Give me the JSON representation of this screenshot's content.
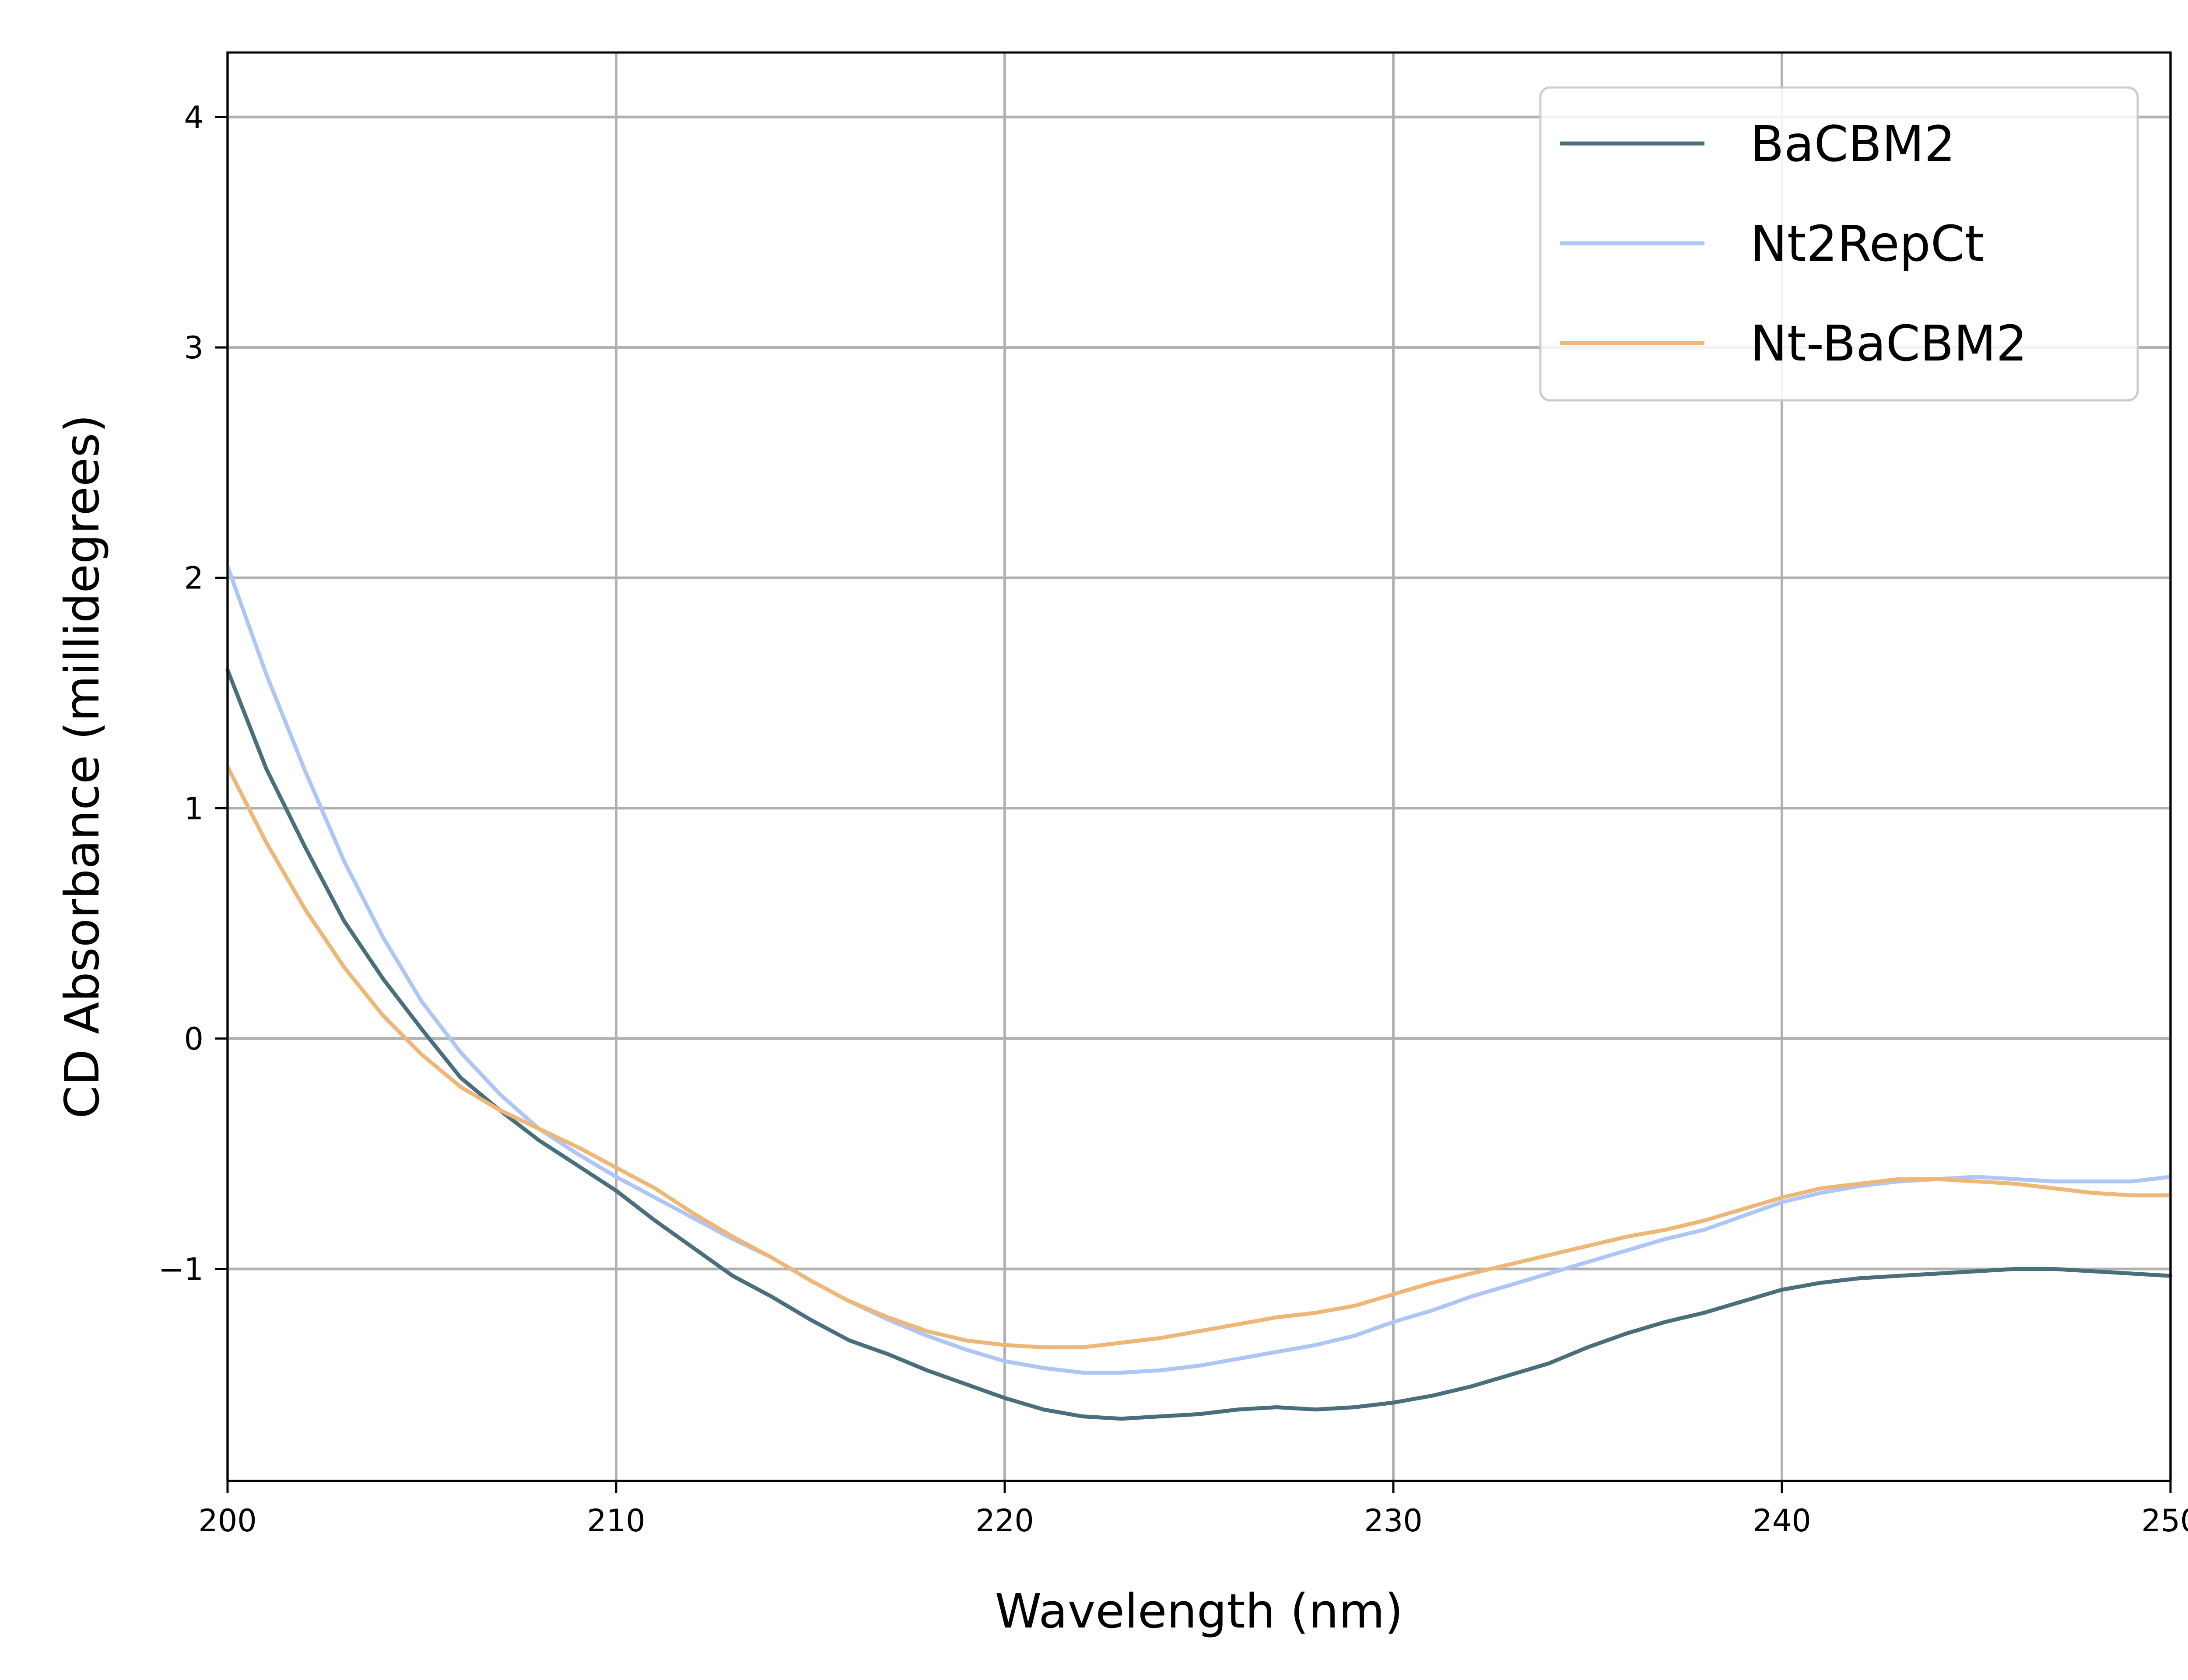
{
  "chart_data": {
    "type": "line",
    "xlabel": "Wavelength (nm)",
    "ylabel": "CD Absorbance (millidegrees)",
    "xlim": [
      200,
      250
    ],
    "ylim": [
      -1.92,
      4.28
    ],
    "xticks": [
      200,
      210,
      220,
      230,
      240,
      250
    ],
    "xtick_labels": [
      "200",
      "210",
      "220",
      "230",
      "240",
      "250"
    ],
    "yticks": [
      -1,
      0,
      1,
      2,
      3,
      4
    ],
    "ytick_labels": [
      "−1",
      "0",
      "1",
      "2",
      "3",
      "4"
    ],
    "grid": true,
    "legend_position": "top-right",
    "x": [
      200,
      201,
      202,
      203,
      204,
      205,
      206,
      207,
      208,
      209,
      210,
      211,
      212,
      213,
      214,
      215,
      216,
      217,
      218,
      219,
      220,
      221,
      222,
      223,
      224,
      225,
      226,
      227,
      228,
      229,
      230,
      231,
      232,
      233,
      234,
      235,
      236,
      237,
      238,
      239,
      240,
      241,
      242,
      243,
      244,
      245,
      246,
      247,
      248,
      249,
      250
    ],
    "series": [
      {
        "name": "BaCBM2",
        "color": "#4a6f7c",
        "values": [
          1.6,
          1.17,
          0.83,
          0.51,
          0.26,
          0.04,
          -0.17,
          -0.31,
          -0.44,
          -0.55,
          -0.66,
          -0.79,
          -0.91,
          -1.03,
          -1.12,
          -1.22,
          -1.31,
          -1.37,
          -1.44,
          -1.5,
          -1.56,
          -1.61,
          -1.64,
          -1.65,
          -1.64,
          -1.63,
          -1.61,
          -1.6,
          -1.61,
          -1.6,
          -1.58,
          -1.55,
          -1.51,
          -1.46,
          -1.41,
          -1.34,
          -1.28,
          -1.23,
          -1.19,
          -1.14,
          -1.09,
          -1.06,
          -1.04,
          -1.03,
          -1.02,
          -1.01,
          -1.0,
          -1.0,
          -1.01,
          -1.02,
          -1.03
        ]
      },
      {
        "name": "Nt2RepCt",
        "color": "#aec6f5",
        "values": [
          2.05,
          1.58,
          1.16,
          0.77,
          0.44,
          0.16,
          -0.06,
          -0.24,
          -0.39,
          -0.5,
          -0.6,
          -0.69,
          -0.78,
          -0.87,
          -0.95,
          -1.05,
          -1.14,
          -1.22,
          -1.29,
          -1.35,
          -1.4,
          -1.43,
          -1.45,
          -1.45,
          -1.44,
          -1.42,
          -1.39,
          -1.36,
          -1.33,
          -1.29,
          -1.23,
          -1.18,
          -1.12,
          -1.07,
          -1.02,
          -0.97,
          -0.92,
          -0.87,
          -0.83,
          -0.77,
          -0.71,
          -0.67,
          -0.64,
          -0.62,
          -0.61,
          -0.6,
          -0.61,
          -0.62,
          -0.62,
          -0.62,
          -0.6
        ]
      },
      {
        "name": "Nt-BaCBM2",
        "color": "#eeb778",
        "values": [
          1.18,
          0.85,
          0.56,
          0.31,
          0.1,
          -0.07,
          -0.21,
          -0.31,
          -0.39,
          -0.47,
          -0.56,
          -0.65,
          -0.76,
          -0.86,
          -0.95,
          -1.05,
          -1.14,
          -1.21,
          -1.27,
          -1.31,
          -1.33,
          -1.34,
          -1.34,
          -1.32,
          -1.3,
          -1.27,
          -1.24,
          -1.21,
          -1.19,
          -1.16,
          -1.11,
          -1.06,
          -1.02,
          -0.98,
          -0.94,
          -0.9,
          -0.86,
          -0.83,
          -0.79,
          -0.74,
          -0.69,
          -0.65,
          -0.63,
          -0.61,
          -0.61,
          -0.62,
          -0.63,
          -0.65,
          -0.67,
          -0.68,
          -0.68
        ]
      }
    ]
  }
}
